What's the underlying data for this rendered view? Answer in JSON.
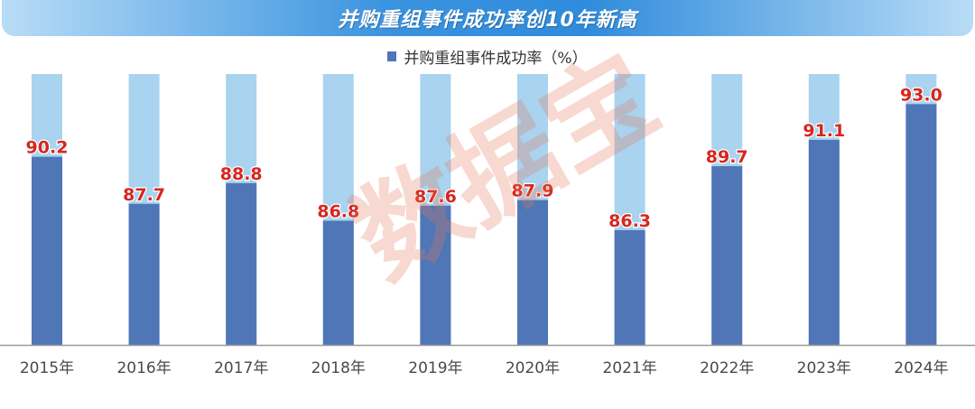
{
  "title": "并购重组事件成功率创10年新高",
  "watermark": "数据宝",
  "colors": {
    "bar_value": "#4f76b6",
    "bar_background": "#a9d3ef",
    "label_red": "#d7261e",
    "axis": "#9a9a9a",
    "tick_text": "#4a4a4a"
  },
  "chart_data": {
    "type": "bar",
    "title": "并购重组事件成功率创10年新高",
    "categories": [
      "2015年",
      "2016年",
      "2017年",
      "2018年",
      "2019年",
      "2020年",
      "2021年",
      "2022年",
      "2023年",
      "2024年"
    ],
    "series": [
      {
        "name": "并购重组事件成功率（%）",
        "values": [
          90.2,
          87.7,
          88.8,
          86.8,
          87.6,
          87.9,
          86.3,
          89.7,
          91.1,
          93.0
        ],
        "labels": [
          "90.2",
          "87.7",
          "88.8",
          "86.8",
          "87.6",
          "87.9",
          "86.3",
          "89.7",
          "91.1",
          "93.0"
        ]
      }
    ],
    "ylim": [
      80.2,
      94.6
    ],
    "xlabel": "",
    "ylabel": "",
    "legend": "top-center",
    "grid": false
  }
}
